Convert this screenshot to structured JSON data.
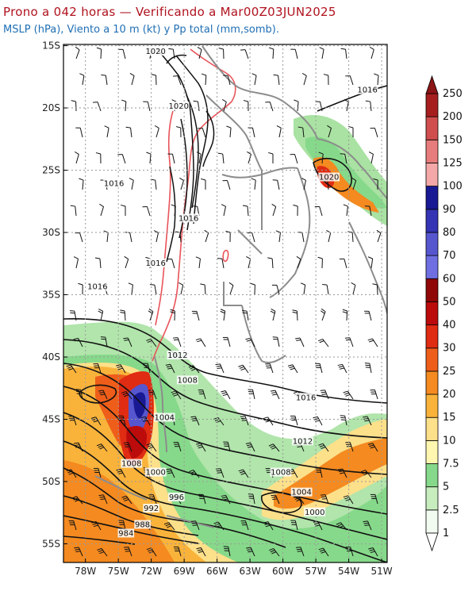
{
  "header": {
    "title": "Prono a 042 horas — Verificando a Mar00Z03JUN2025",
    "subtitle": "MSLP (hPa), Viento a 10 m (kt) y Pp total (mm,somb)."
  },
  "axes": {
    "lat_labels": [
      "15S",
      "20S",
      "25S",
      "30S",
      "35S",
      "40S",
      "45S",
      "50S",
      "55S"
    ],
    "lon_labels": [
      "78W",
      "75W",
      "72W",
      "69W",
      "66W",
      "63W",
      "60W",
      "57W",
      "54W",
      "51W"
    ]
  },
  "isobar_labels": [
    {
      "text": "1020",
      "lon": -71.6,
      "lat": -15.6
    },
    {
      "text": "1020",
      "lon": -69.5,
      "lat": -20.0
    },
    {
      "text": "1016",
      "lon": -52.3,
      "lat": -18.7
    },
    {
      "text": "1016",
      "lon": -75.4,
      "lat": -26.2
    },
    {
      "text": "1020",
      "lon": -55.8,
      "lat": -25.7
    },
    {
      "text": "1016",
      "lon": -68.6,
      "lat": -29.0
    },
    {
      "text": "1016",
      "lon": -71.6,
      "lat": -32.6
    },
    {
      "text": "1016",
      "lon": -76.9,
      "lat": -34.5
    },
    {
      "text": "1012",
      "lon": -69.6,
      "lat": -40.0
    },
    {
      "text": "1008",
      "lon": -68.7,
      "lat": -42.0
    },
    {
      "text": "1016",
      "lon": -57.9,
      "lat": -43.4
    },
    {
      "text": "1004",
      "lon": -70.8,
      "lat": -45.0
    },
    {
      "text": "1012",
      "lon": -58.2,
      "lat": -46.9
    },
    {
      "text": "1008",
      "lon": -73.8,
      "lat": -48.7
    },
    {
      "text": "1000",
      "lon": -71.6,
      "lat": -49.4
    },
    {
      "text": "1008",
      "lon": -60.2,
      "lat": -49.4
    },
    {
      "text": "1004",
      "lon": -58.3,
      "lat": -51.0
    },
    {
      "text": "996",
      "lon": -69.7,
      "lat": -51.4
    },
    {
      "text": "992",
      "lon": -72.0,
      "lat": -52.3
    },
    {
      "text": "1000",
      "lon": -57.1,
      "lat": -52.6
    },
    {
      "text": "988",
      "lon": -72.8,
      "lat": -53.6
    },
    {
      "text": "984",
      "lon": -74.3,
      "lat": -54.3
    }
  ],
  "colorbar": {
    "labels": [
      "1",
      "2.5",
      "5",
      "7.5",
      "10",
      "15",
      "20",
      "25",
      "30",
      "40",
      "50",
      "60",
      "70",
      "80",
      "90",
      "100",
      "125",
      "150",
      "200",
      "250"
    ],
    "colors": [
      "#f2fbf0",
      "#c7edbe",
      "#86d98a",
      "#fff6b0",
      "#fde08a",
      "#f9b33b",
      "#f48a20",
      "#ee5e1a",
      "#df2c12",
      "#bb0b0b",
      "#8f0707",
      "#6f6fe2",
      "#5656cf",
      "#3434b4",
      "#191994",
      "#f4a8a8",
      "#e77c7c",
      "#d14e4e",
      "#a71e1e"
    ]
  },
  "colors": {
    "title": "#b0121e",
    "subtitle": "#1f6fb5",
    "isobar": "#111111",
    "border": "#888888",
    "relief": "#e8545a"
  }
}
